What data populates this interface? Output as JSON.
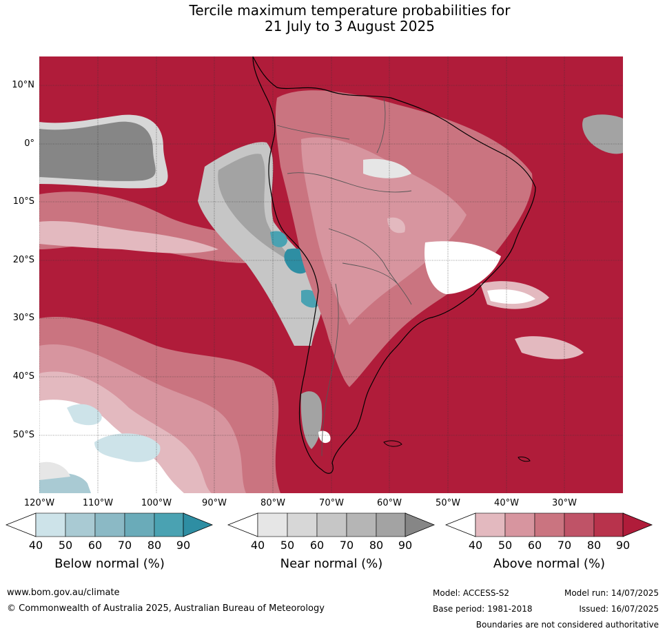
{
  "title": {
    "line1": "Tercile maximum temperature probabilities for",
    "line2": "21 July to 3 August 2025"
  },
  "lat_labels": [
    "10°N",
    "0°",
    "10°S",
    "20°S",
    "30°S",
    "40°S",
    "50°S"
  ],
  "lon_labels": [
    "120°W",
    "110°W",
    "100°W",
    "90°W",
    "80°W",
    "70°W",
    "60°W",
    "50°W",
    "40°W",
    "30°W"
  ],
  "colorbars": {
    "below": {
      "title": "Below normal (%)",
      "ticks": [
        "40",
        "50",
        "60",
        "70",
        "80",
        "90"
      ],
      "colors": [
        "#cde3e9",
        "#a9cad3",
        "#8bb9c5",
        "#6aabb9",
        "#4aa2b2",
        "#2e8ea3"
      ]
    },
    "near": {
      "title": "Near normal (%)",
      "ticks": [
        "40",
        "50",
        "60",
        "70",
        "80",
        "90"
      ],
      "colors": [
        "#e6e6e6",
        "#d7d7d7",
        "#c6c6c6",
        "#b5b5b5",
        "#a3a3a3",
        "#868686"
      ]
    },
    "above": {
      "title": "Above normal (%)",
      "ticks": [
        "40",
        "50",
        "60",
        "70",
        "80",
        "90"
      ],
      "colors": [
        "#e3b9bf",
        "#d7959f",
        "#ca7480",
        "#bf5367",
        "#b8334c",
        "#b01c3a"
      ]
    }
  },
  "footer": {
    "website": "www.bom.gov.au/climate",
    "copyright": "© Commonwealth of Australia 2025, Australian Bureau of Meteorology",
    "model": "Model: ACCESS-S2",
    "base_period": "Base period: 1981-2018",
    "model_run": "Model run: 14/07/2025",
    "issued": "Issued: 16/07/2025",
    "disclaimer": "Boundaries are not considered authoritative"
  }
}
